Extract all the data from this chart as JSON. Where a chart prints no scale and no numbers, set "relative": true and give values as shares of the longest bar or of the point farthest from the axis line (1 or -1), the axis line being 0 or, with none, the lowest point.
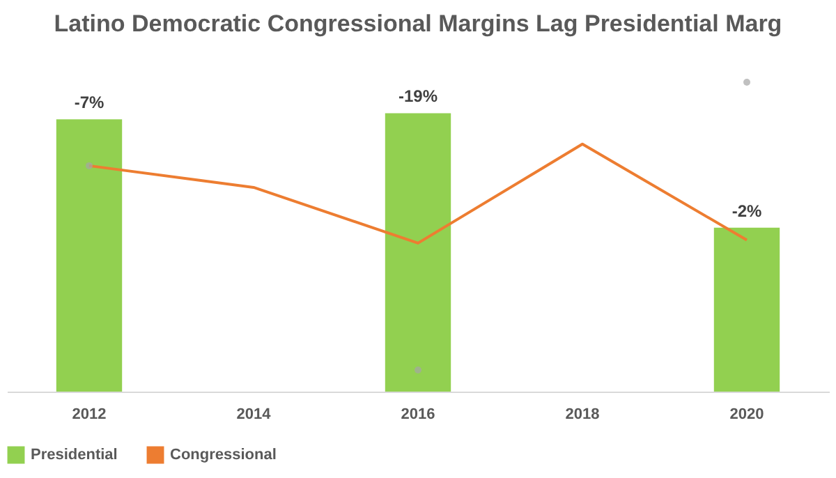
{
  "chart_data": {
    "type": "bar",
    "title": "Latino Democratic Congressional Margins Lag Presidential Marg",
    "categories": [
      "2012",
      "2014",
      "2016",
      "2018",
      "2020"
    ],
    "relative": true,
    "legend": "bottom",
    "annotations": [
      {
        "text": "-7%",
        "x": "2012",
        "y": 0.88
      },
      {
        "text": "-19%",
        "x": "2016",
        "y": 0.9
      },
      {
        "text": "-2%",
        "x": "2020",
        "y": 0.53
      }
    ],
    "series": [
      {
        "name": "Presidential",
        "color": "#92d050",
        "values": [
          0.88,
          null,
          0.9,
          null,
          0.53
        ]
      },
      {
        "name": "Congressional",
        "type": "line",
        "color": "#ed7d31",
        "values": [
          0.73,
          0.66,
          0.48,
          0.8,
          0.49
        ]
      },
      {
        "type": "scatter",
        "color": "#a5a5a5",
        "values": [
          0.73,
          null,
          0.07,
          null,
          1
        ]
      }
    ]
  }
}
